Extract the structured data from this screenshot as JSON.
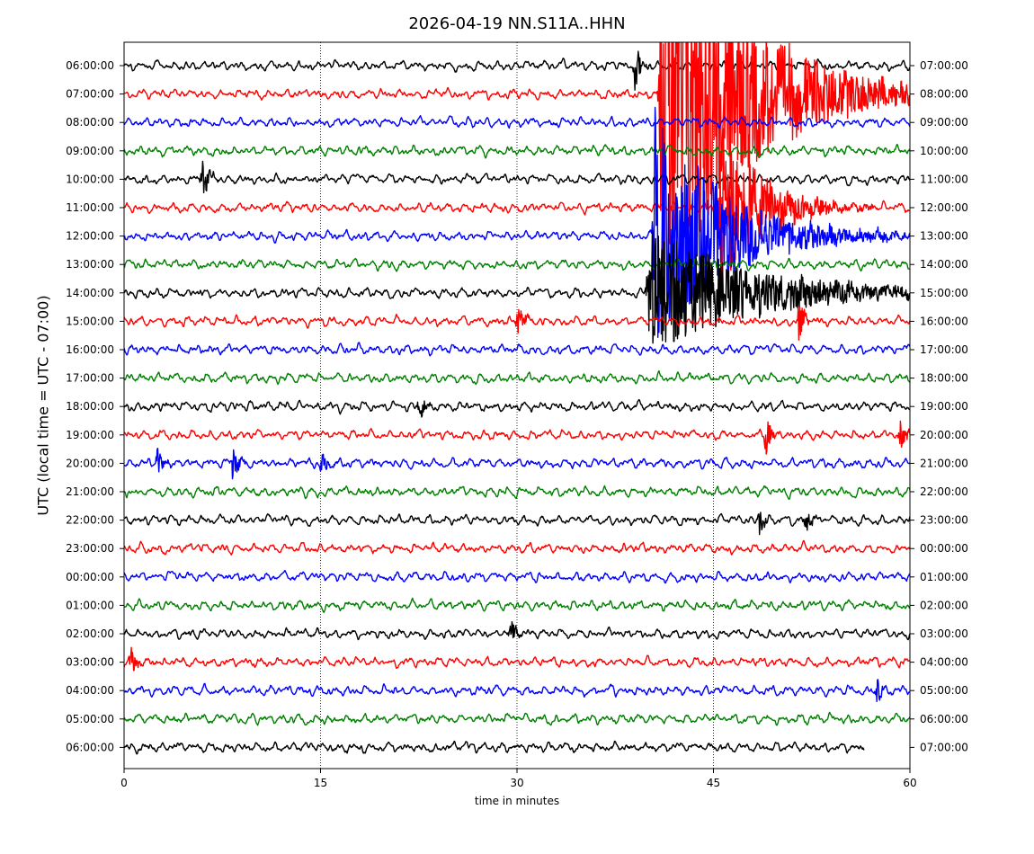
{
  "chart_data": {
    "type": "line",
    "title": "2026-04-19 NN.S11A..HHN",
    "xlabel": "time in minutes",
    "ylabel": "UTC (local time = UTC - 07:00)",
    "xlim": [
      0,
      60
    ],
    "xticks": [
      0,
      15,
      30,
      45,
      60
    ],
    "grid_x": [
      15,
      30,
      45
    ],
    "trace_colors": [
      "#000000",
      "#ff0000",
      "#0000ff",
      "#008000"
    ],
    "left_labels": [
      "06:00:00",
      "07:00:00",
      "08:00:00",
      "09:00:00",
      "10:00:00",
      "11:00:00",
      "12:00:00",
      "13:00:00",
      "14:00:00",
      "15:00:00",
      "16:00:00",
      "17:00:00",
      "18:00:00",
      "19:00:00",
      "20:00:00",
      "21:00:00",
      "22:00:00",
      "23:00:00",
      "00:00:00",
      "01:00:00",
      "02:00:00",
      "03:00:00",
      "04:00:00",
      "05:00:00",
      "06:00:00"
    ],
    "right_labels": [
      "07:00:00",
      "08:00:00",
      "09:00:00",
      "10:00:00",
      "11:00:00",
      "12:00:00",
      "13:00:00",
      "14:00:00",
      "15:00:00",
      "16:00:00",
      "17:00:00",
      "18:00:00",
      "19:00:00",
      "20:00:00",
      "21:00:00",
      "22:00:00",
      "23:00:00",
      "00:00:00",
      "01:00:00",
      "02:00:00",
      "03:00:00",
      "04:00:00",
      "05:00:00",
      "06:00:00",
      "07:00:00"
    ],
    "last_trace_end_minute": 56.5,
    "events": [
      {
        "row": 0,
        "minute": 39,
        "amplitude": 1.2
      },
      {
        "row": 1,
        "minute": 41,
        "amplitude": 11,
        "decay": 6
      },
      {
        "row": 5,
        "minute": 45.5,
        "amplitude": 4.5,
        "decay": 3
      },
      {
        "row": 6,
        "minute": 40.5,
        "amplitude": 6,
        "decay": 5
      },
      {
        "row": 8,
        "minute": 40,
        "amplitude": 3,
        "decay": 8
      },
      {
        "row": 4,
        "minute": 6,
        "amplitude": 1.1
      },
      {
        "row": 9,
        "minute": 30,
        "amplitude": 1.2
      },
      {
        "row": 9,
        "minute": 51.5,
        "amplitude": 1.3
      },
      {
        "row": 12,
        "minute": 22.5,
        "amplitude": 0.9
      },
      {
        "row": 13,
        "minute": 49,
        "amplitude": 1.0
      },
      {
        "row": 13,
        "minute": 59.3,
        "amplitude": 1.2
      },
      {
        "row": 14,
        "minute": 2.5,
        "amplitude": 0.8
      },
      {
        "row": 14,
        "minute": 8.3,
        "amplitude": 1.1
      },
      {
        "row": 14,
        "minute": 15,
        "amplitude": 0.8
      },
      {
        "row": 16,
        "minute": 48.5,
        "amplitude": 0.8
      },
      {
        "row": 16,
        "minute": 52,
        "amplitude": 0.8
      },
      {
        "row": 20,
        "minute": 29.5,
        "amplitude": 0.8
      },
      {
        "row": 21,
        "minute": 0.5,
        "amplitude": 0.9
      },
      {
        "row": 22,
        "minute": 57.5,
        "amplitude": 0.8
      }
    ]
  }
}
